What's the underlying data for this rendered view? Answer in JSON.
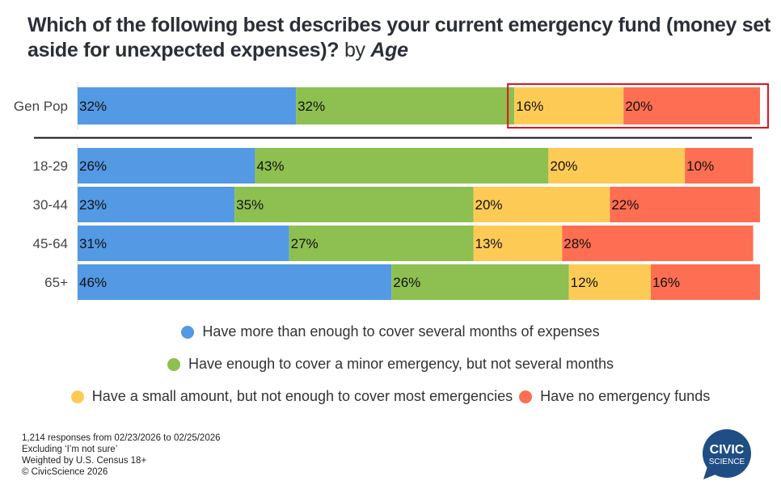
{
  "title": {
    "main": "Which of the following best describes your current emergency fund (money set aside for unexpected expenses)?",
    "by": "by",
    "dimension": "Age"
  },
  "chart_data": {
    "type": "bar",
    "orientation": "horizontal",
    "stacked": true,
    "title": "Which of the following best describes your current emergency fund (money set aside for unexpected expenses)? by Age",
    "xlabel": "",
    "ylabel": "",
    "xlim": [
      0,
      100
    ],
    "categories": [
      "Gen Pop",
      "18-29",
      "30-44",
      "45-64",
      "65+"
    ],
    "series": [
      {
        "name": "Have more than enough to cover several months of expenses",
        "color": "#5499e3",
        "values": [
          32,
          26,
          23,
          31,
          46
        ]
      },
      {
        "name": "Have enough to cover a minor emergency, but not several months",
        "color": "#8dc051",
        "values": [
          32,
          43,
          35,
          27,
          26
        ]
      },
      {
        "name": "Have a small amount, but not enough to cover most emergencies",
        "color": "#fdcb55",
        "values": [
          16,
          20,
          20,
          13,
          12
        ]
      },
      {
        "name": "Have no emergency funds",
        "color": "#fd6e52",
        "values": [
          20,
          10,
          22,
          28,
          16
        ]
      }
    ],
    "data_labels": true,
    "label_suffix": "%",
    "highlight": {
      "category": "Gen Pop",
      "series": [
        "Have a small amount, but not enough to cover most emergencies",
        "Have no emergency funds"
      ],
      "color": "#e0141e"
    },
    "legend": "bottom-center",
    "grid": false
  },
  "legend_rows": [
    [
      0
    ],
    [
      1
    ],
    [
      2,
      3
    ]
  ],
  "footnote": [
    "1,214 responses from 02/23/2026 to 02/25/2026",
    "Excluding ‘I’m not sure’",
    "Weighted by U.S. Census 18+",
    "© CivicScience 2026"
  ],
  "logo": {
    "line1": "CIVIC",
    "line2": "SCIENCE",
    "color": "#1f4e84"
  }
}
